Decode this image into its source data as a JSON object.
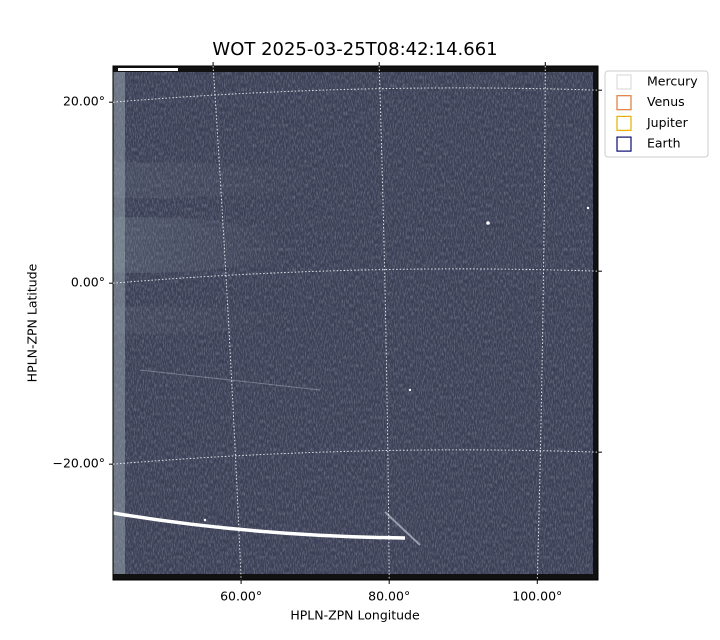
{
  "chart_data": {
    "type": "image",
    "title": "WOT 2025-03-25T08:42:14.661",
    "xlabel": "HPLN-ZPN Longitude",
    "ylabel": "HPLN-ZPN Latitude",
    "xlim": [
      42.7,
      108.2
    ],
    "ylim": [
      -32.8,
      24
    ],
    "xticks": [
      {
        "value": 60,
        "label": "60.00°"
      },
      {
        "value": 80,
        "label": "80.00°"
      },
      {
        "value": 100,
        "label": "100.00°"
      }
    ],
    "yticks": [
      {
        "value": -20,
        "label": "−20.00°"
      },
      {
        "value": 0,
        "label": "0.00°"
      },
      {
        "value": 20,
        "label": "20.00°"
      }
    ],
    "grid": true,
    "legend": "upper right",
    "series": [
      {
        "name": "Mercury",
        "color": "#dcdcdc"
      },
      {
        "name": "Venus",
        "color": "#e07b39"
      },
      {
        "name": "Jupiter",
        "color": "#e6b000"
      },
      {
        "name": "Earth",
        "color": "#0b0b6e"
      }
    ]
  }
}
